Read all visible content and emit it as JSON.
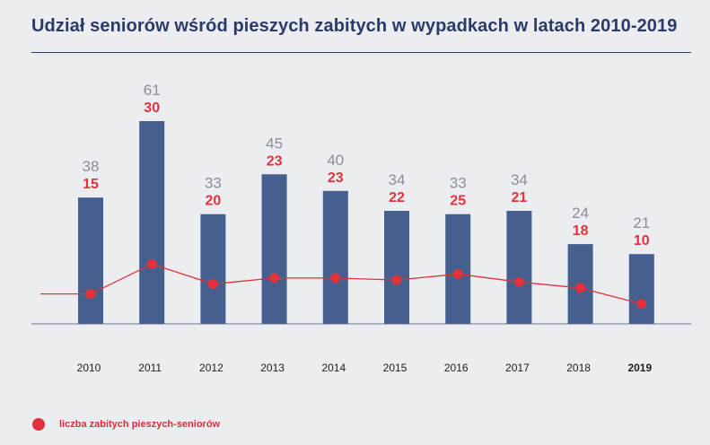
{
  "title": "Udział seniorów wśród pieszych zabitych w wypadkach w latach 2010-2019",
  "legend": {
    "label": "liczba zabitych pieszych-seniorów"
  },
  "colors": {
    "bar": "#45608f",
    "line": "#e2323b",
    "totalLabel": "#8c8f96",
    "titleColor": "#2b3a67",
    "axis": "#6c7690",
    "tick": "#1e1e1e"
  },
  "chart_data": {
    "type": "bar",
    "title": "Udział seniorów wśród pieszych zabitych w wypadkach w latach 2010-2019",
    "xlabel": "",
    "ylabel": "",
    "grid": false,
    "legend_position": "bottom-left",
    "categories": [
      "2010",
      "2011",
      "2012",
      "2013",
      "2014",
      "2015",
      "2016",
      "2017",
      "2018",
      "2019"
    ],
    "highlight_category": "2019",
    "series": [
      {
        "type": "bar",
        "values": [
          38,
          61,
          33,
          45,
          40,
          34,
          33,
          34,
          24,
          21
        ]
      },
      {
        "type": "line",
        "name": "liczba zabitych pieszych-seniorów",
        "values": [
          15,
          30,
          20,
          23,
          23,
          22,
          25,
          21,
          18,
          10
        ]
      }
    ]
  }
}
